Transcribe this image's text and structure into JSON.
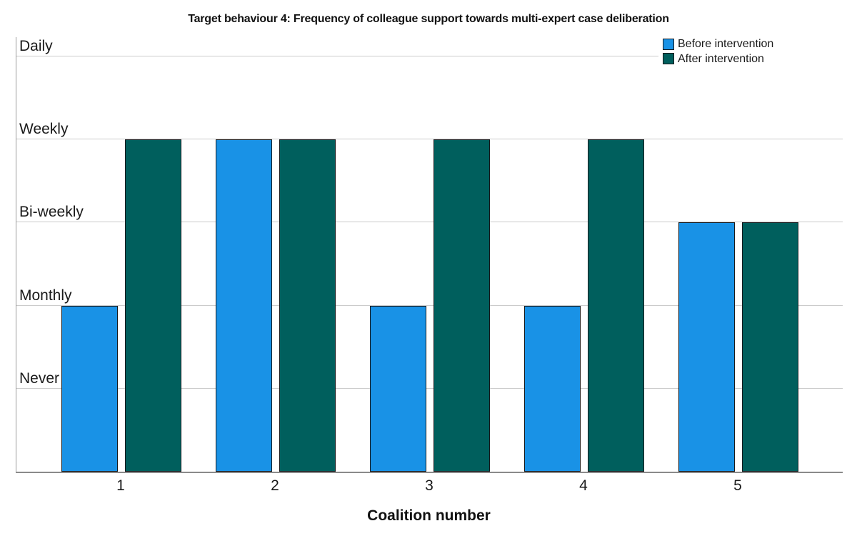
{
  "title": "Target behaviour 4: Frequency of colleague support towards multi-expert case deliberation",
  "chart_data": {
    "type": "bar",
    "title": "Target behaviour 4: Frequency of colleague support towards multi-expert case deliberation",
    "xlabel": "Coalition number",
    "ylabel": "",
    "categories": [
      "1",
      "2",
      "3",
      "4",
      "5"
    ],
    "y_tick_labels": [
      {
        "value": 1,
        "label": "Never"
      },
      {
        "value": 2,
        "label": "Monthly"
      },
      {
        "value": 3,
        "label": "Bi-weekly"
      },
      {
        "value": 4,
        "label": "Weekly"
      },
      {
        "value": 5,
        "label": "Daily"
      }
    ],
    "series": [
      {
        "name": "Before intervention",
        "color": "#1992e6",
        "values": [
          2,
          4,
          2,
          2,
          3
        ],
        "levels": [
          "Monthly",
          "Weekly",
          "Monthly",
          "Monthly",
          "Bi-weekly"
        ]
      },
      {
        "name": "After intervention",
        "color": "#005f5d",
        "values": [
          4,
          4,
          4,
          4,
          3
        ],
        "levels": [
          "Weekly",
          "Weekly",
          "Weekly",
          "Weekly",
          "Bi-weekly"
        ]
      }
    ],
    "ylim": [
      0,
      5.23
    ],
    "grid": true,
    "legend_position": "top-right",
    "colors": {
      "bar_border": "#16191c",
      "gridline": "#cbcbcb",
      "axis_line": "#8a8a8a",
      "text": "#1a1a1a",
      "background": "#ffffff"
    }
  }
}
